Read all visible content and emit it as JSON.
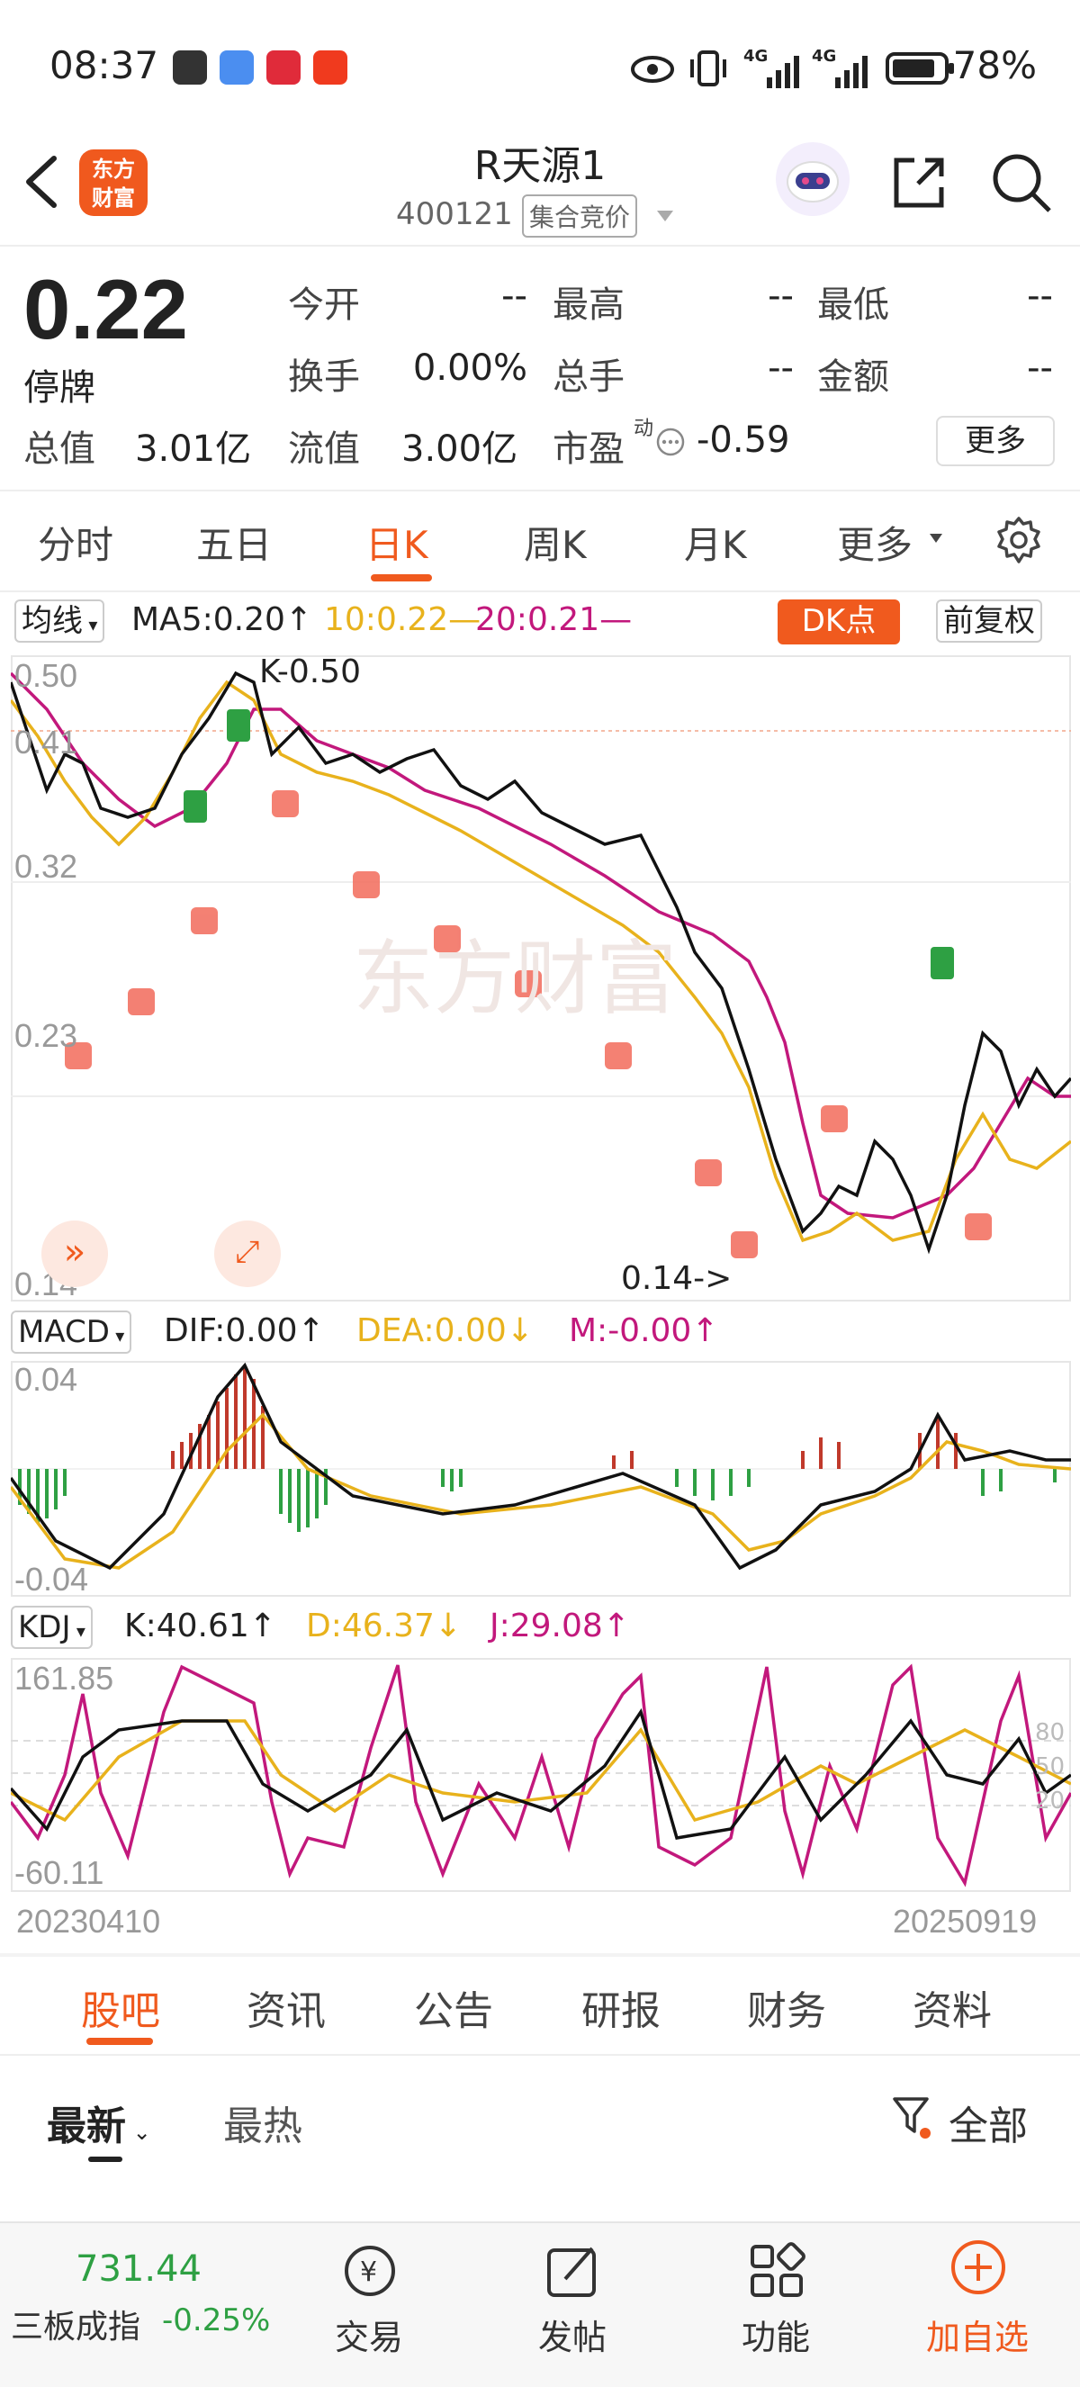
{
  "status_bar": {
    "time": "08:37",
    "battery": "78%",
    "network_1": "4G",
    "network_2": "4G"
  },
  "header": {
    "logo_text_1": "东方",
    "logo_text_2": "财富",
    "title": "R天源1",
    "code": "400121",
    "auction_tag": "集合竞价"
  },
  "quote": {
    "price": "0.22",
    "status": "停牌",
    "rows": [
      [
        {
          "label": "今开",
          "value": "--"
        },
        {
          "label": "最高",
          "value": "--"
        },
        {
          "label": "最低",
          "value": "--"
        }
      ],
      [
        {
          "label": "换手",
          "value": "0.00%"
        },
        {
          "label": "总手",
          "value": "--"
        },
        {
          "label": "金额",
          "value": "--"
        }
      ]
    ],
    "total_cap_label": "总值",
    "total_cap": "3.01亿",
    "float_cap_label": "流值",
    "float_cap": "3.00亿",
    "pe_label": "市盈",
    "pe_sup": "动",
    "pe_value": "-0.59",
    "more": "更多"
  },
  "period_tabs": [
    "分时",
    "五日",
    "日K",
    "周K",
    "月K",
    "更多"
  ],
  "period_active": 2,
  "ma_bar": {
    "selector": "均线",
    "ma5": "MA5:0.20↑",
    "ma10": "10:0.22—",
    "ma20": "20:0.21—",
    "dk_button": "DK点",
    "adjust_button": "前复权"
  },
  "kline": {
    "y_labels": [
      "0.50",
      "0.41",
      "0.32",
      "0.23",
      "0.14"
    ],
    "max_annotation": "K-0.50",
    "min_annotation": "0.14->",
    "watermark": "东方财富"
  },
  "macd": {
    "selector": "MACD",
    "dif": "DIF:0.00↑",
    "dea": "DEA:0.00↓",
    "m": "M:-0.00↑",
    "y_top": "0.04",
    "y_bottom": "-0.04"
  },
  "kdj": {
    "selector": "KDJ",
    "k": "K:40.61↑",
    "d": "D:46.37↓",
    "j": "J:29.08↑",
    "y_top": "161.85",
    "y_bottom": "-60.11",
    "ref_high": "80",
    "ref_mid": "50",
    "ref_low": "20"
  },
  "date_range": {
    "start": "20230410",
    "end": "20250919"
  },
  "content_tabs": [
    "股吧",
    "资讯",
    "公告",
    "研报",
    "财务",
    "资料"
  ],
  "content_active": 0,
  "sort_tabs": {
    "latest": "最新",
    "hottest": "最热",
    "filter": "全部"
  },
  "bottom_nav": {
    "index_value": "731.44",
    "index_name": "三板成指",
    "index_change": "-0.25%",
    "trade": "交易",
    "post": "发帖",
    "features": "功能",
    "add_watch": "加自选"
  },
  "colors": {
    "accent": "#f05a1e",
    "up": "#c0392b",
    "down": "#2ea043",
    "ma5": "#111111",
    "ma10": "#e8b21c",
    "ma20": "#c2187c"
  }
}
